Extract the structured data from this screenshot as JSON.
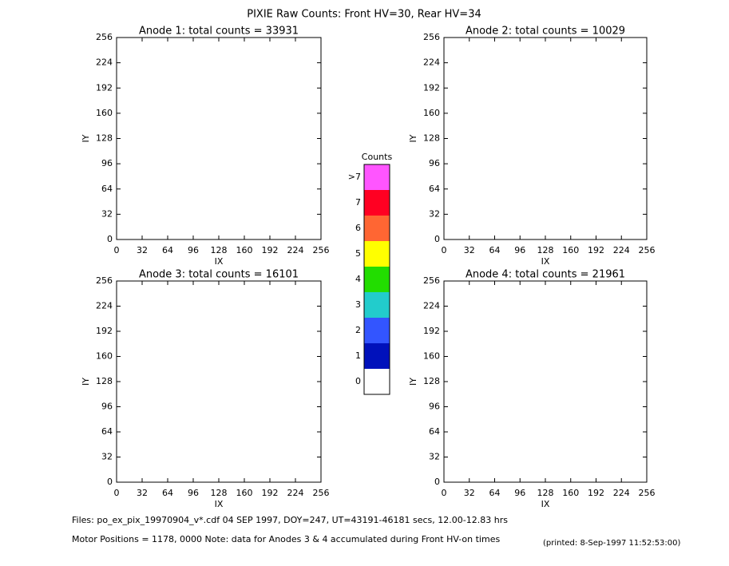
{
  "title": "PIXIE Raw Counts:  Front HV=30, Rear HV=34",
  "chart_data": [
    {
      "type": "heatmap",
      "title": "Anode 1: total counts = 33931",
      "xlabel": "IX",
      "ylabel": "IY",
      "xlim": [
        0,
        256
      ],
      "ylim": [
        0,
        256
      ],
      "xticks": [
        0,
        32,
        64,
        96,
        128,
        160,
        192,
        224,
        256
      ],
      "yticks": [
        0,
        32,
        64,
        96,
        128,
        160,
        192,
        224,
        256
      ]
    },
    {
      "type": "heatmap",
      "title": "Anode 2: total counts = 10029",
      "xlabel": "IX",
      "ylabel": "IY",
      "xlim": [
        0,
        256
      ],
      "ylim": [
        0,
        256
      ],
      "xticks": [
        0,
        32,
        64,
        96,
        128,
        160,
        192,
        224,
        256
      ],
      "yticks": [
        0,
        32,
        64,
        96,
        128,
        160,
        192,
        224,
        256
      ]
    },
    {
      "type": "heatmap",
      "title": "Anode 3: total counts = 16101",
      "xlabel": "IX",
      "ylabel": "IY",
      "xlim": [
        0,
        256
      ],
      "ylim": [
        0,
        256
      ],
      "xticks": [
        0,
        32,
        64,
        96,
        128,
        160,
        192,
        224,
        256
      ],
      "yticks": [
        0,
        32,
        64,
        96,
        128,
        160,
        192,
        224,
        256
      ]
    },
    {
      "type": "heatmap",
      "title": "Anode 4: total counts = 21961",
      "xlabel": "IX",
      "ylabel": "IY",
      "xlim": [
        0,
        256
      ],
      "ylim": [
        0,
        256
      ],
      "xticks": [
        0,
        32,
        64,
        96,
        128,
        160,
        192,
        224,
        256
      ],
      "yticks": [
        0,
        32,
        64,
        96,
        128,
        160,
        192,
        224,
        256
      ]
    }
  ],
  "colorbar": {
    "title": "Counts",
    "categories": [
      "0",
      "1",
      "2",
      "3",
      "4",
      "5",
      "6",
      "7",
      ">7"
    ],
    "colors": [
      "#ffffff",
      "#0011bb",
      "#3355ff",
      "#22cccc",
      "#22dd00",
      "#ffff00",
      "#ff6633",
      "#ff0022",
      "#ff55ff"
    ]
  },
  "footer": {
    "files": "Files: po_ex_pix_19970904_v*.cdf    04 SEP 1997, DOY=247, UT=43191-46181 secs, 12.00-12.83 hrs",
    "motor": "Motor Positions = 1178, 0000   Note: data for Anodes 3 & 4 accumulated during Front HV-on times",
    "printed": "(printed:  8-Sep-1997 11:52:53:00)"
  }
}
